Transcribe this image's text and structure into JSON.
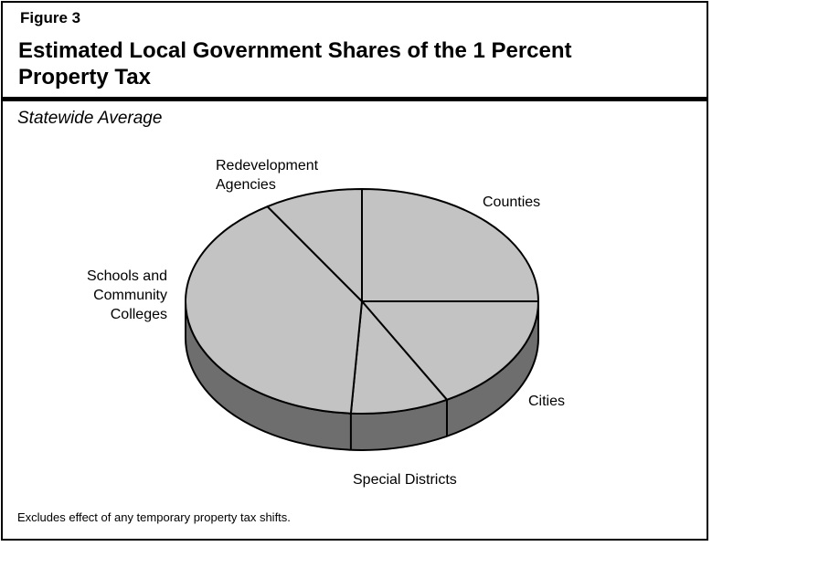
{
  "figure_label": "Figure 3",
  "title": "Estimated Local Government Shares of the 1 Percent Property Tax",
  "subtitle": "Statewide Average",
  "note": "Excludes effect of any temporary property tax shifts.",
  "chart_data": {
    "type": "pie",
    "title": "Estimated Local Government Shares of the 1 Percent Property Tax",
    "subtitle": "Statewide Average",
    "units": "percent",
    "three_d": true,
    "slices": [
      {
        "label": "Counties",
        "value": 25
      },
      {
        "label": "Cities",
        "value": 17
      },
      {
        "label": "Special Districts",
        "value": 9
      },
      {
        "label": "Schools and Community Colleges",
        "value": 40
      },
      {
        "label": "Redevelopment Agencies",
        "value": 9
      }
    ],
    "colors": {
      "top": "#c3c3c3",
      "side": "#6e6e6e",
      "line": "#000000"
    },
    "legend": "none"
  }
}
